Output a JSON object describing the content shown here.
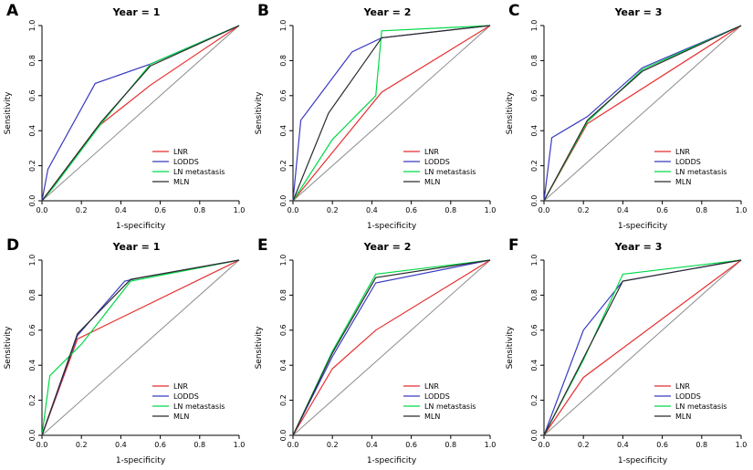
{
  "figure": {
    "background": "#ffffff"
  },
  "colors": {
    "lnr": "#e62e2e",
    "lodds": "#3939c2",
    "ln_metastasis": "#00d948",
    "mln": "#2b2b2b",
    "diagonal": "#8c8c8c",
    "axis": "#000000"
  },
  "legend_labels": [
    "LNR",
    "LODDS",
    "LN metastasis",
    "MLN"
  ],
  "chart_data": [
    {
      "type": "line",
      "letter": "A",
      "title": "Year = 1",
      "xlabel": "1-specificity",
      "ylabel": "Sensitivity",
      "xlim": [
        0,
        1
      ],
      "ylim": [
        0,
        1
      ],
      "xticks": [
        0.0,
        0.2,
        0.4,
        0.6,
        0.8,
        1.0
      ],
      "yticks": [
        0.0,
        0.2,
        0.4,
        0.6,
        0.8,
        1.0
      ],
      "diagonal": true,
      "legend_position": "bottom-right",
      "series": [
        {
          "name": "LNR",
          "color": "#e62e2e",
          "x": [
            0,
            0.28,
            0.55,
            1
          ],
          "y": [
            0,
            0.42,
            0.66,
            1
          ]
        },
        {
          "name": "LODDS",
          "color": "#3939c2",
          "x": [
            0,
            0.03,
            0.27,
            0.55,
            1
          ],
          "y": [
            0,
            0.18,
            0.67,
            0.78,
            1
          ]
        },
        {
          "name": "LN metastasis",
          "color": "#00d948",
          "x": [
            0,
            0.06,
            0.3,
            0.55,
            1
          ],
          "y": [
            0,
            0.08,
            0.44,
            0.78,
            1
          ]
        },
        {
          "name": "MLN",
          "color": "#2b2b2b",
          "x": [
            0,
            0.3,
            0.55,
            1
          ],
          "y": [
            0,
            0.45,
            0.77,
            1
          ]
        }
      ]
    },
    {
      "type": "line",
      "letter": "B",
      "title": "Year = 2",
      "xlabel": "1-specificity",
      "ylabel": "Sensitivity",
      "xlim": [
        0,
        1
      ],
      "ylim": [
        0,
        1
      ],
      "xticks": [
        0.0,
        0.2,
        0.4,
        0.6,
        0.8,
        1.0
      ],
      "yticks": [
        0.0,
        0.2,
        0.4,
        0.6,
        0.8,
        1.0
      ],
      "diagonal": true,
      "legend_position": "bottom-right",
      "series": [
        {
          "name": "LNR",
          "color": "#e62e2e",
          "x": [
            0,
            0.45,
            1
          ],
          "y": [
            0,
            0.62,
            1
          ]
        },
        {
          "name": "LODDS",
          "color": "#3939c2",
          "x": [
            0,
            0.04,
            0.3,
            0.45,
            1
          ],
          "y": [
            0,
            0.46,
            0.85,
            0.93,
            1
          ]
        },
        {
          "name": "LN metastasis",
          "color": "#00d948",
          "x": [
            0,
            0.2,
            0.42,
            0.45,
            1
          ],
          "y": [
            0,
            0.35,
            0.6,
            0.97,
            1
          ]
        },
        {
          "name": "MLN",
          "color": "#2b2b2b",
          "x": [
            0,
            0.18,
            0.45,
            1
          ],
          "y": [
            0,
            0.5,
            0.93,
            1
          ]
        }
      ]
    },
    {
      "type": "line",
      "letter": "C",
      "title": "Year = 3",
      "xlabel": "1-specificity",
      "ylabel": "Sensitivity",
      "xlim": [
        0,
        1
      ],
      "ylim": [
        0,
        1
      ],
      "xticks": [
        0.0,
        0.2,
        0.4,
        0.6,
        0.8,
        1.0
      ],
      "yticks": [
        0.0,
        0.2,
        0.4,
        0.6,
        0.8,
        1.0
      ],
      "diagonal": true,
      "legend_position": "bottom-right",
      "series": [
        {
          "name": "LNR",
          "color": "#e62e2e",
          "x": [
            0,
            0.22,
            1
          ],
          "y": [
            0,
            0.44,
            1
          ]
        },
        {
          "name": "LODDS",
          "color": "#3939c2",
          "x": [
            0,
            0.04,
            0.22,
            0.5,
            1
          ],
          "y": [
            0,
            0.36,
            0.48,
            0.76,
            1
          ]
        },
        {
          "name": "LN metastasis",
          "color": "#00d948",
          "x": [
            0,
            0.22,
            0.5,
            1
          ],
          "y": [
            0,
            0.45,
            0.75,
            1
          ]
        },
        {
          "name": "MLN",
          "color": "#2b2b2b",
          "x": [
            0,
            0.22,
            0.5,
            1
          ],
          "y": [
            0,
            0.46,
            0.74,
            1
          ]
        }
      ]
    },
    {
      "type": "line",
      "letter": "D",
      "title": "Year = 1",
      "xlabel": "1-specificity",
      "ylabel": "Sensitivity",
      "xlim": [
        0,
        1
      ],
      "ylim": [
        0,
        1
      ],
      "xticks": [
        0.0,
        0.2,
        0.4,
        0.6,
        0.8,
        1.0
      ],
      "yticks": [
        0.0,
        0.2,
        0.4,
        0.6,
        0.8,
        1.0
      ],
      "diagonal": true,
      "legend_position": "bottom-right",
      "series": [
        {
          "name": "LNR",
          "color": "#e62e2e",
          "x": [
            0,
            0.18,
            1
          ],
          "y": [
            0,
            0.55,
            1
          ]
        },
        {
          "name": "LODDS",
          "color": "#3939c2",
          "x": [
            0,
            0.18,
            0.42,
            0.5,
            1
          ],
          "y": [
            0,
            0.57,
            0.88,
            0.9,
            1
          ]
        },
        {
          "name": "LN metastasis",
          "color": "#00d948",
          "x": [
            0,
            0.04,
            0.2,
            0.45,
            1
          ],
          "y": [
            0,
            0.34,
            0.52,
            0.88,
            1
          ]
        },
        {
          "name": "MLN",
          "color": "#2b2b2b",
          "x": [
            0,
            0.18,
            0.45,
            1
          ],
          "y": [
            0,
            0.58,
            0.89,
            1
          ]
        }
      ]
    },
    {
      "type": "line",
      "letter": "E",
      "title": "Year = 2",
      "xlabel": "1-specificity",
      "ylabel": "Sensitivity",
      "xlim": [
        0,
        1
      ],
      "ylim": [
        0,
        1
      ],
      "xticks": [
        0.0,
        0.2,
        0.4,
        0.6,
        0.8,
        1.0
      ],
      "yticks": [
        0.0,
        0.2,
        0.4,
        0.6,
        0.8,
        1.0
      ],
      "diagonal": true,
      "legend_position": "bottom-right",
      "series": [
        {
          "name": "LNR",
          "color": "#e62e2e",
          "x": [
            0,
            0.2,
            0.42,
            1
          ],
          "y": [
            0,
            0.38,
            0.6,
            1
          ]
        },
        {
          "name": "LODDS",
          "color": "#3939c2",
          "x": [
            0,
            0.2,
            0.42,
            1
          ],
          "y": [
            0,
            0.45,
            0.87,
            1
          ]
        },
        {
          "name": "LN metastasis",
          "color": "#00d948",
          "x": [
            0,
            0.2,
            0.42,
            1
          ],
          "y": [
            0,
            0.48,
            0.92,
            1
          ]
        },
        {
          "name": "MLN",
          "color": "#2b2b2b",
          "x": [
            0,
            0.2,
            0.42,
            1
          ],
          "y": [
            0,
            0.47,
            0.9,
            1
          ]
        }
      ]
    },
    {
      "type": "line",
      "letter": "F",
      "title": "Year = 3",
      "xlabel": "1-specificity",
      "ylabel": "Sensitivity",
      "xlim": [
        0,
        1
      ],
      "ylim": [
        0,
        1
      ],
      "xticks": [
        0.0,
        0.2,
        0.4,
        0.6,
        0.8,
        1.0
      ],
      "yticks": [
        0.0,
        0.2,
        0.4,
        0.6,
        0.8,
        1.0
      ],
      "diagonal": true,
      "legend_position": "bottom-right",
      "series": [
        {
          "name": "LNR",
          "color": "#e62e2e",
          "x": [
            0,
            0.2,
            1
          ],
          "y": [
            0,
            0.33,
            1
          ]
        },
        {
          "name": "LODDS",
          "color": "#3939c2",
          "x": [
            0,
            0.2,
            0.4,
            1
          ],
          "y": [
            0,
            0.6,
            0.88,
            1
          ]
        },
        {
          "name": "LN metastasis",
          "color": "#00d948",
          "x": [
            0,
            0.2,
            0.4,
            1
          ],
          "y": [
            0,
            0.43,
            0.92,
            1
          ]
        },
        {
          "name": "MLN",
          "color": "#2b2b2b",
          "x": [
            0,
            0.2,
            0.4,
            1
          ],
          "y": [
            0,
            0.44,
            0.88,
            1
          ]
        }
      ]
    }
  ]
}
